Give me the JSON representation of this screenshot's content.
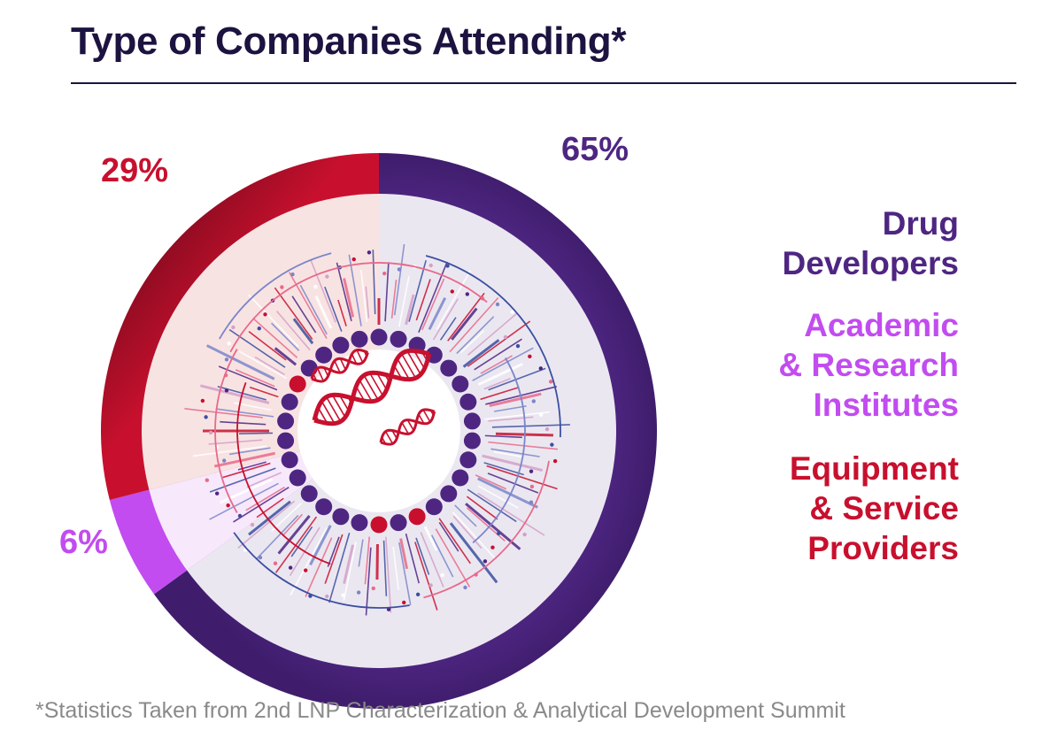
{
  "header": {
    "title": "Type of Companies Attending*"
  },
  "footnote": "*Statistics Taken from 2nd LNP Characterization & Analytical Development Summit",
  "chart_data": {
    "type": "pie",
    "title": "Type of Companies Attending*",
    "slices": [
      {
        "name": "Drug Developers",
        "label": "Drug\nDevelopers",
        "value": 65,
        "value_label": "65%",
        "color": "#4e2682"
      },
      {
        "name": "Academic & Research Institutes",
        "label": "Academic\n& Research\nInstitutes",
        "value": 6,
        "value_label": "6%",
        "color": "#c24cf0"
      },
      {
        "name": "Equipment & Service Providers",
        "label": "Equipment\n& Service\nProviders",
        "value": 29,
        "value_label": "29%",
        "color": "#c8102e"
      }
    ],
    "legend": "right"
  }
}
